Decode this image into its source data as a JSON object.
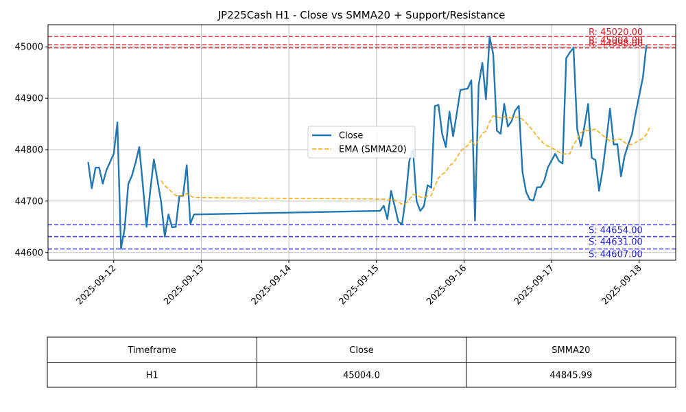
{
  "chart_data": {
    "type": "line",
    "title": "JP225Cash H1 - Close vs SMMA20 + Support/Resistance",
    "xlabel": "",
    "ylabel": "",
    "xlim": [
      "2025-09-11T06:00",
      "2025-09-18T10:00"
    ],
    "ylim": [
      44585,
      45043
    ],
    "grid": true,
    "legend_position": "center-right",
    "x_ticks": [
      "2025-09-12",
      "2025-09-13",
      "2025-09-14",
      "2025-09-15",
      "2025-09-16",
      "2025-09-17",
      "2025-09-18"
    ],
    "y_ticks": [
      44600,
      44700,
      44800,
      44900,
      45000
    ],
    "series": [
      {
        "name": "Close",
        "color": "#1f77b4",
        "style": "solid",
        "points": [
          [
            "2025-09-11T17:00",
            44776
          ],
          [
            "2025-09-11T18:00",
            44725
          ],
          [
            "2025-09-11T19:00",
            44765
          ],
          [
            "2025-09-11T20:00",
            44765
          ],
          [
            "2025-09-11T21:00",
            44734
          ],
          [
            "2025-09-11T22:00",
            44760
          ],
          [
            "2025-09-12T00:00",
            44792
          ],
          [
            "2025-09-12T01:00",
            44853
          ],
          [
            "2025-09-12T02:00",
            44607
          ],
          [
            "2025-09-12T03:00",
            44647
          ],
          [
            "2025-09-12T04:00",
            44733
          ],
          [
            "2025-09-12T05:00",
            44750
          ],
          [
            "2025-09-12T06:00",
            44775
          ],
          [
            "2025-09-12T07:00",
            44805
          ],
          [
            "2025-09-12T08:00",
            44730
          ],
          [
            "2025-09-12T09:00",
            44650
          ],
          [
            "2025-09-12T10:00",
            44720
          ],
          [
            "2025-09-12T11:00",
            44781
          ],
          [
            "2025-09-12T12:00",
            44740
          ],
          [
            "2025-09-12T13:00",
            44698
          ],
          [
            "2025-09-12T14:00",
            44631
          ],
          [
            "2025-09-12T15:00",
            44674
          ],
          [
            "2025-09-12T16:00",
            44649
          ],
          [
            "2025-09-12T17:00",
            44650
          ],
          [
            "2025-09-12T18:00",
            44710
          ],
          [
            "2025-09-12T19:00",
            44710
          ],
          [
            "2025-09-12T20:00",
            44770
          ],
          [
            "2025-09-12T21:00",
            44656
          ],
          [
            "2025-09-12T22:00",
            44674
          ],
          [
            "2025-09-15T01:00",
            44681
          ],
          [
            "2025-09-15T02:00",
            44691
          ],
          [
            "2025-09-15T03:00",
            44665
          ],
          [
            "2025-09-15T04:00",
            44720
          ],
          [
            "2025-09-15T05:00",
            44690
          ],
          [
            "2025-09-15T06:00",
            44660
          ],
          [
            "2025-09-15T07:00",
            44655
          ],
          [
            "2025-09-15T08:00",
            44705
          ],
          [
            "2025-09-15T09:00",
            44778
          ],
          [
            "2025-09-15T10:00",
            44800
          ],
          [
            "2025-09-15T11:00",
            44700
          ],
          [
            "2025-09-15T12:00",
            44681
          ],
          [
            "2025-09-15T13:00",
            44690
          ],
          [
            "2025-09-15T14:00",
            44731
          ],
          [
            "2025-09-15T15:00",
            44726
          ],
          [
            "2025-09-15T16:00",
            44885
          ],
          [
            "2025-09-15T17:00",
            44887
          ],
          [
            "2025-09-15T18:00",
            44831
          ],
          [
            "2025-09-15T19:00",
            44805
          ],
          [
            "2025-09-15T20:00",
            44874
          ],
          [
            "2025-09-15T21:00",
            44826
          ],
          [
            "2025-09-15T22:00",
            44870
          ],
          [
            "2025-09-15T23:00",
            44916
          ],
          [
            "2025-09-16T01:00",
            44919
          ],
          [
            "2025-09-16T02:00",
            44935
          ],
          [
            "2025-09-16T03:00",
            44662
          ],
          [
            "2025-09-16T04:00",
            44925
          ],
          [
            "2025-09-16T05:00",
            44969
          ],
          [
            "2025-09-16T06:00",
            44898
          ],
          [
            "2025-09-16T07:00",
            45020
          ],
          [
            "2025-09-16T08:00",
            44985
          ],
          [
            "2025-09-16T09:00",
            44837
          ],
          [
            "2025-09-16T10:00",
            44831
          ],
          [
            "2025-09-16T11:00",
            44889
          ],
          [
            "2025-09-16T12:00",
            44845
          ],
          [
            "2025-09-16T13:00",
            44855
          ],
          [
            "2025-09-16T14:00",
            44876
          ],
          [
            "2025-09-16T15:00",
            44885
          ],
          [
            "2025-09-16T16:00",
            44757
          ],
          [
            "2025-09-16T17:00",
            44718
          ],
          [
            "2025-09-16T18:00",
            44703
          ],
          [
            "2025-09-16T19:00",
            44701
          ],
          [
            "2025-09-16T20:00",
            44727
          ],
          [
            "2025-09-16T21:00",
            44727
          ],
          [
            "2025-09-16T22:00",
            44740
          ],
          [
            "2025-09-16T23:00",
            44766
          ],
          [
            "2025-09-17T01:00",
            44792
          ],
          [
            "2025-09-17T02:00",
            44778
          ],
          [
            "2025-09-17T03:00",
            44773
          ],
          [
            "2025-09-17T04:00",
            44978
          ],
          [
            "2025-09-17T05:00",
            44989
          ],
          [
            "2025-09-17T06:00",
            44998
          ],
          [
            "2025-09-17T07:00",
            44840
          ],
          [
            "2025-09-17T08:00",
            44807
          ],
          [
            "2025-09-17T09:00",
            44846
          ],
          [
            "2025-09-17T10:00",
            44889
          ],
          [
            "2025-09-17T11:00",
            44784
          ],
          [
            "2025-09-17T12:00",
            44780
          ],
          [
            "2025-09-17T13:00",
            44720
          ],
          [
            "2025-09-17T14:00",
            44762
          ],
          [
            "2025-09-17T15:00",
            44818
          ],
          [
            "2025-09-17T16:00",
            44880
          ],
          [
            "2025-09-17T17:00",
            44810
          ],
          [
            "2025-09-17T18:00",
            44811
          ],
          [
            "2025-09-17T19:00",
            44748
          ],
          [
            "2025-09-17T20:00",
            44788
          ],
          [
            "2025-09-17T21:00",
            44810
          ],
          [
            "2025-09-17T22:00",
            44830
          ],
          [
            "2025-09-17T23:00",
            44870
          ],
          [
            "2025-09-18T01:00",
            44940
          ],
          [
            "2025-09-18T02:00",
            45004
          ]
        ]
      },
      {
        "name": "EMA (SMMA20)",
        "color": "#ffa500",
        "style": "dashed",
        "points": [
          [
            "2025-09-12T13:00",
            44740
          ],
          [
            "2025-09-12T14:00",
            44730
          ],
          [
            "2025-09-12T15:00",
            44724
          ],
          [
            "2025-09-12T16:00",
            44717
          ],
          [
            "2025-09-12T17:00",
            44711
          ],
          [
            "2025-09-12T18:00",
            44710
          ],
          [
            "2025-09-12T19:00",
            44710
          ],
          [
            "2025-09-12T20:00",
            44715
          ],
          [
            "2025-09-12T21:00",
            44710
          ],
          [
            "2025-09-12T22:00",
            44707
          ],
          [
            "2025-09-15T01:00",
            44704
          ],
          [
            "2025-09-15T02:00",
            44704
          ],
          [
            "2025-09-15T03:00",
            44702
          ],
          [
            "2025-09-15T04:00",
            44703
          ],
          [
            "2025-09-15T05:00",
            44702
          ],
          [
            "2025-09-15T06:00",
            44698
          ],
          [
            "2025-09-15T07:00",
            44694
          ],
          [
            "2025-09-15T08:00",
            44695
          ],
          [
            "2025-09-15T09:00",
            44703
          ],
          [
            "2025-09-15T10:00",
            44713
          ],
          [
            "2025-09-15T11:00",
            44712
          ],
          [
            "2025-09-15T12:00",
            44708
          ],
          [
            "2025-09-15T13:00",
            44707
          ],
          [
            "2025-09-15T14:00",
            44710
          ],
          [
            "2025-09-15T15:00",
            44711
          ],
          [
            "2025-09-15T16:00",
            44729
          ],
          [
            "2025-09-15T17:00",
            44745
          ],
          [
            "2025-09-15T18:00",
            44752
          ],
          [
            "2025-09-15T19:00",
            44757
          ],
          [
            "2025-09-15T20:00",
            44769
          ],
          [
            "2025-09-15T21:00",
            44774
          ],
          [
            "2025-09-15T22:00",
            44784
          ],
          [
            "2025-09-15T23:00",
            44797
          ],
          [
            "2025-09-16T01:00",
            44808
          ],
          [
            "2025-09-16T02:00",
            44819
          ],
          [
            "2025-09-16T03:00",
            44808
          ],
          [
            "2025-09-16T04:00",
            44819
          ],
          [
            "2025-09-16T05:00",
            44832
          ],
          [
            "2025-09-16T06:00",
            44836
          ],
          [
            "2025-09-16T07:00",
            44854
          ],
          [
            "2025-09-16T08:00",
            44866
          ],
          [
            "2025-09-16T09:00",
            44864
          ],
          [
            "2025-09-16T10:00",
            44862
          ],
          [
            "2025-09-16T11:00",
            44864
          ],
          [
            "2025-09-16T12:00",
            44863
          ],
          [
            "2025-09-16T13:00",
            44862
          ],
          [
            "2025-09-16T14:00",
            44863
          ],
          [
            "2025-09-16T15:00",
            44864
          ],
          [
            "2025-09-16T16:00",
            44859
          ],
          [
            "2025-09-16T17:00",
            44852
          ],
          [
            "2025-09-16T18:00",
            44844
          ],
          [
            "2025-09-16T19:00",
            44836
          ],
          [
            "2025-09-16T20:00",
            44826
          ],
          [
            "2025-09-16T21:00",
            44818
          ],
          [
            "2025-09-16T22:00",
            44811
          ],
          [
            "2025-09-16T23:00",
            44807
          ],
          [
            "2025-09-17T01:00",
            44800
          ],
          [
            "2025-09-17T02:00",
            44795
          ],
          [
            "2025-09-17T03:00",
            44792
          ],
          [
            "2025-09-17T04:00",
            44792
          ],
          [
            "2025-09-17T05:00",
            44792
          ],
          [
            "2025-09-17T06:00",
            44810
          ],
          [
            "2025-09-17T07:00",
            44820
          ],
          [
            "2025-09-17T08:00",
            44833
          ],
          [
            "2025-09-17T09:00",
            44838
          ],
          [
            "2025-09-17T10:00",
            44837
          ],
          [
            "2025-09-17T11:00",
            44838
          ],
          [
            "2025-09-17T12:00",
            44840
          ],
          [
            "2025-09-17T13:00",
            44834
          ],
          [
            "2025-09-17T14:00",
            44828
          ],
          [
            "2025-09-17T15:00",
            44822
          ],
          [
            "2025-09-17T16:00",
            44817
          ],
          [
            "2025-09-17T17:00",
            44818
          ],
          [
            "2025-09-17T18:00",
            44821
          ],
          [
            "2025-09-17T19:00",
            44820
          ],
          [
            "2025-09-17T20:00",
            44814
          ],
          [
            "2025-09-17T21:00",
            44810
          ],
          [
            "2025-09-17T22:00",
            44810
          ],
          [
            "2025-09-17T23:00",
            44814
          ],
          [
            "2025-09-18T01:00",
            44822
          ],
          [
            "2025-09-18T02:00",
            44830
          ],
          [
            "2025-09-18T03:00",
            44846
          ]
        ]
      }
    ],
    "resistance": [
      {
        "value": 45020,
        "label": "R: 45020.00"
      },
      {
        "value": 45004,
        "label": "R: 45004.00"
      },
      {
        "value": 44998,
        "label": "R: 44998.00"
      }
    ],
    "support": [
      {
        "value": 44654,
        "label": "S: 44654.00"
      },
      {
        "value": 44631,
        "label": "S: 44631.00"
      },
      {
        "value": 44607,
        "label": "S: 44607.00"
      }
    ],
    "resistance_color": "#e0161d",
    "support_color": "#1a1ae6",
    "table": {
      "headers": [
        "Timeframe",
        "Close",
        "SMMA20"
      ],
      "rows": [
        [
          "H1",
          "45004.0",
          "44845.99"
        ]
      ]
    }
  }
}
